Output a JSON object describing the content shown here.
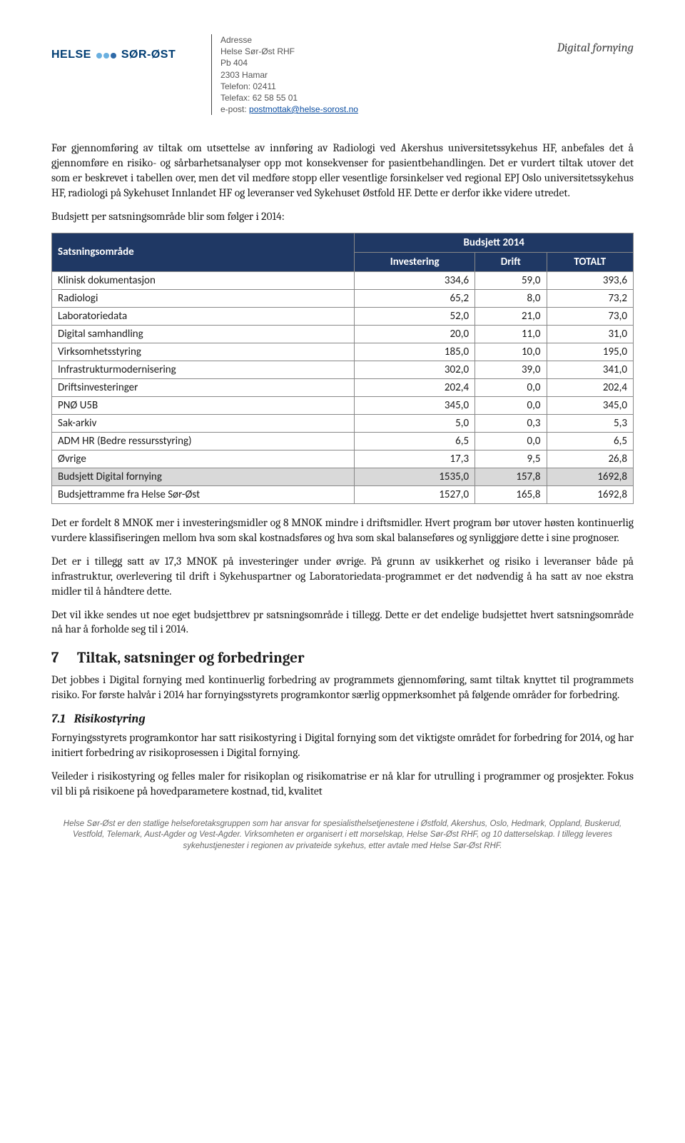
{
  "header": {
    "logo_helse": "HELSE",
    "logo_sorost": "SØR-ØST",
    "addr": {
      "line1": "Adresse",
      "line2": "Helse Sør-Øst RHF",
      "line3": "Pb 404",
      "line4": "2303 Hamar",
      "line5": "Telefon: 02411",
      "line6": "Telefax: 62 58 55 01",
      "line7_label": "e-post: ",
      "line7_link": "postmottak@helse-sorost.no"
    },
    "right": "Digital fornying"
  },
  "paragraphs": {
    "p1": "Før gjennomføring av tiltak om utsettelse av innføring av Radiologi ved Akershus universitetssykehus HF, anbefales det å gjennomføre en risiko- og sårbarhetsanalyser opp mot konsekvenser for pasientbehandlingen. Det er vurdert tiltak utover det som er beskrevet i tabellen over, men det vil medføre stopp eller vesentlige forsinkelser ved regional EPJ Oslo universitetssykehus HF, radiologi på Sykehuset Innlandet HF og leveranser ved Sykehuset Østfold HF. Dette er derfor ikke videre utredet.",
    "p2": "Budsjett per satsningsområde blir som følger i 2014:",
    "p3": "Det er fordelt 8 MNOK mer i investeringsmidler og 8 MNOK mindre i driftsmidler. Hvert program bør utover høsten kontinuerlig vurdere klassifiseringen mellom hva som skal kostnadsføres og hva som skal balanseføres og synliggjøre dette i sine prognoser.",
    "p4": "Det er i tillegg satt av 17,3 MNOK på investeringer under øvrige. På grunn av usikkerhet og risiko i leveranser både på infrastruktur, overlevering til drift i Sykehuspartner og Laboratoriedata-programmet er det nødvendig å ha satt av noe ekstra midler til å håndtere dette.",
    "p5": "Det vil ikke sendes ut noe eget budsjettbrev pr satsningsområde i tillegg. Dette er det endelige budsjettet hvert satsningsområde nå har å forholde seg til i 2014.",
    "p6": "Det jobbes i Digital fornying med kontinuerlig forbedring av programmets gjennomføring, samt tiltak knyttet til programmets risiko. For første halvår i 2014 har fornyingsstyrets programkontor særlig oppmerksomhet på følgende områder for forbedring.",
    "p7": "Fornyingsstyrets programkontor har satt risikostyring i Digital fornying som det viktigste området for forbedring for 2014, og har initiert forbedring av risikoprosessen i Digital fornying.",
    "p8": "Veileder i risikostyring og felles maler for risikoplan og risikomatrise er nå klar for utrulling i programmer og prosjekter. Fokus vil bli på risikoene på hovedparametere kostnad, tid, kvalitet"
  },
  "section7": {
    "num": "7",
    "title": "Tiltak, satsninger og forbedringer"
  },
  "section71": {
    "num": "7.1",
    "title": "Risikostyring"
  },
  "table": {
    "col_area": "Satsningsområde",
    "col_budget": "Budsjett 2014",
    "col_invest": "Investering",
    "col_drift": "Drift",
    "col_total": "TOTALT",
    "rows": [
      {
        "label": "Klinisk dokumentasjon",
        "invest": "334,6",
        "drift": "59,0",
        "total": "393,6"
      },
      {
        "label": "Radiologi",
        "invest": "65,2",
        "drift": "8,0",
        "total": "73,2"
      },
      {
        "label": "Laboratoriedata",
        "invest": "52,0",
        "drift": "21,0",
        "total": "73,0"
      },
      {
        "label": "Digital samhandling",
        "invest": "20,0",
        "drift": "11,0",
        "total": "31,0"
      },
      {
        "label": "Virksomhetsstyring",
        "invest": "185,0",
        "drift": "10,0",
        "total": "195,0"
      },
      {
        "label": "Infrastrukturmodernisering",
        "invest": "302,0",
        "drift": "39,0",
        "total": "341,0"
      },
      {
        "label": "Driftsinvesteringer",
        "invest": "202,4",
        "drift": "0,0",
        "total": "202,4"
      },
      {
        "label": "PNØ U5B",
        "invest": "345,0",
        "drift": "0,0",
        "total": "345,0"
      },
      {
        "label": "Sak-arkiv",
        "invest": "5,0",
        "drift": "0,3",
        "total": "5,3"
      },
      {
        "label": "ADM HR (Bedre ressursstyring)",
        "invest": "6,5",
        "drift": "0,0",
        "total": "6,5"
      },
      {
        "label": "Øvrige",
        "invest": "17,3",
        "drift": "9,5",
        "total": "26,8"
      }
    ],
    "sum1": {
      "label": "Budsjett Digital fornying",
      "invest": "1535,0",
      "drift": "157,8",
      "total": "1692,8"
    },
    "sum2": {
      "label": "Budsjettramme fra Helse Sør-Øst",
      "invest": "1527,0",
      "drift": "165,8",
      "total": "1692,8"
    }
  },
  "footer": {
    "line1": "Helse Sør-Øst er den statlige helseforetaksgruppen som har ansvar for spesialisthelsetjenestene i Østfold, Akershus, Oslo, Hedmark, Oppland, Buskerud, Vestfold, Telemark, Aust-Agder og Vest-Agder. Virksomheten er organisert i ett morselskap, Helse Sør-Øst RHF, og 10 datterselskap. I tillegg leveres sykehustjenester i regionen av privateide sykehus, etter avtale med Helse Sør-Øst RHF."
  },
  "style": {
    "header_bg": "#1f3864",
    "header_fg": "#ffffff",
    "border": "#888888",
    "shaded_bg": "#d9d9d9",
    "link_color": "#0b4ea2",
    "logo_color": "#003d73",
    "dot_color": "#6ab0e0"
  }
}
